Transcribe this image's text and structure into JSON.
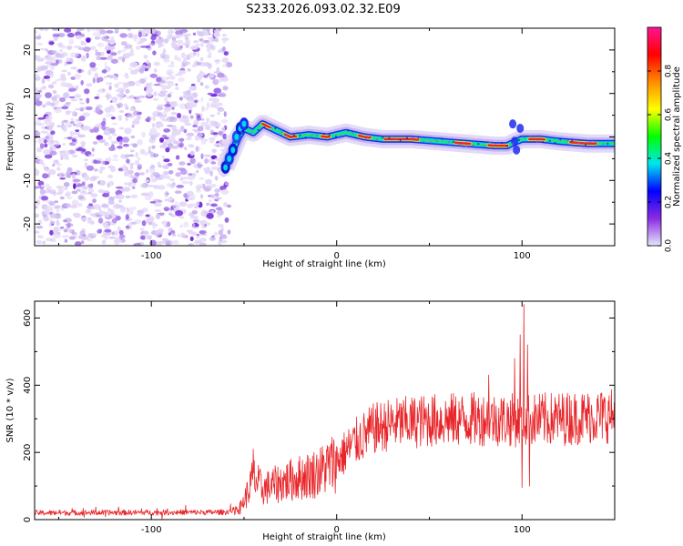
{
  "title": "S233.2026.093.02.32.E09",
  "chart_data": [
    {
      "type": "heatmap",
      "xlabel": "Height of straight line (km)",
      "ylabel": "Frequency (Hz)",
      "xlim": [
        -163,
        150
      ],
      "ylim": [
        -25,
        25
      ],
      "xticks": [
        "-100",
        "0",
        "100"
      ],
      "xtick_values": [
        -100,
        0,
        100
      ],
      "yticks": [
        "-20",
        "-10",
        "0",
        "10",
        "20"
      ],
      "ytick_values": [
        -20,
        -10,
        0,
        10,
        20
      ],
      "noise_region_end_km": -60,
      "ridge": [
        {
          "x": -60,
          "f": -7
        },
        {
          "x": -57,
          "f": -4
        },
        {
          "x": -53,
          "f": 0
        },
        {
          "x": -50,
          "f": 2
        },
        {
          "x": -45,
          "f": 1
        },
        {
          "x": -40,
          "f": 3
        },
        {
          "x": -35,
          "f": 2
        },
        {
          "x": -30,
          "f": 1
        },
        {
          "x": -25,
          "f": 0
        },
        {
          "x": -15,
          "f": 0.5
        },
        {
          "x": -5,
          "f": 0
        },
        {
          "x": 5,
          "f": 1
        },
        {
          "x": 15,
          "f": 0
        },
        {
          "x": 25,
          "f": -0.5
        },
        {
          "x": 40,
          "f": -0.5
        },
        {
          "x": 55,
          "f": -1
        },
        {
          "x": 70,
          "f": -1.5
        },
        {
          "x": 85,
          "f": -2
        },
        {
          "x": 92,
          "f": -2
        },
        {
          "x": 97,
          "f": -1
        },
        {
          "x": 100,
          "f": -0.5
        },
        {
          "x": 110,
          "f": -0.5
        },
        {
          "x": 120,
          "f": -1
        },
        {
          "x": 135,
          "f": -1.5
        },
        {
          "x": 150,
          "f": -1.5
        }
      ],
      "colorbar": {
        "label": "Normalized spectral amplitude",
        "ticks": [
          "0.0",
          "0.2",
          "0.4",
          "0.6",
          "0.8"
        ],
        "tick_values": [
          0.0,
          0.2,
          0.4,
          0.6,
          0.8
        ],
        "range": [
          0,
          1
        ],
        "colors": [
          "#e6e6fa",
          "#8a2be2",
          "#0000ff",
          "#00e5ee",
          "#00ff00",
          "#ffff00",
          "#ff8c00",
          "#ff0000",
          "#ff1493"
        ]
      }
    },
    {
      "type": "line",
      "xlabel": "Height of straight line (km)",
      "ylabel": "SNR (10 * v/v)",
      "xlim": [
        -163,
        150
      ],
      "ylim": [
        0,
        650
      ],
      "xticks": [
        "-100",
        "0",
        "100"
      ],
      "xtick_values": [
        -100,
        0,
        100
      ],
      "yticks": [
        "0",
        "200",
        "400",
        "600"
      ],
      "ytick_values": [
        0,
        200,
        400,
        600
      ],
      "color": "#e8262a",
      "trend": [
        {
          "x": -163,
          "y": 20
        },
        {
          "x": -60,
          "y": 22
        },
        {
          "x": -52,
          "y": 35
        },
        {
          "x": -48,
          "y": 80
        },
        {
          "x": -45,
          "y": 125
        },
        {
          "x": -40,
          "y": 90
        },
        {
          "x": -30,
          "y": 110
        },
        {
          "x": -20,
          "y": 125
        },
        {
          "x": -10,
          "y": 140
        },
        {
          "x": 0,
          "y": 175
        },
        {
          "x": 10,
          "y": 230
        },
        {
          "x": 20,
          "y": 270
        },
        {
          "x": 30,
          "y": 285
        },
        {
          "x": 50,
          "y": 295
        },
        {
          "x": 80,
          "y": 300
        },
        {
          "x": 100,
          "y": 295
        },
        {
          "x": 120,
          "y": 300
        },
        {
          "x": 150,
          "y": 310
        }
      ],
      "peaks": [
        {
          "x": -45,
          "y": 210
        },
        {
          "x": 82,
          "y": 430
        },
        {
          "x": 96,
          "y": 480
        },
        {
          "x": 99,
          "y": 550
        },
        {
          "x": 101,
          "y": 640
        },
        {
          "x": 103,
          "y": 520
        },
        {
          "x": 100,
          "y": 95
        },
        {
          "x": 104,
          "y": 100
        }
      ]
    }
  ]
}
